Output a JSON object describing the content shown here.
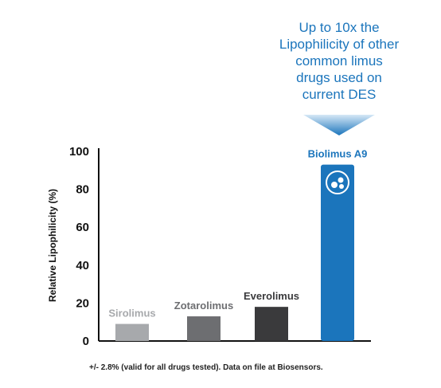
{
  "callout": {
    "lines": [
      "Up to 10x the",
      "Lipophilicity of other",
      "common limus",
      "drugs used on",
      "current DES"
    ]
  },
  "chart_data": {
    "type": "bar",
    "categories": [
      "Sirolimus",
      "Zotarolimus",
      "Everolimus",
      "Biolimus A9"
    ],
    "values": [
      9,
      13,
      18,
      93
    ],
    "ylabel": "Relative Lipophilicity (%)",
    "xlabel": "",
    "ylim": [
      0,
      100
    ],
    "yticks": [
      0,
      20,
      40,
      60,
      80,
      100
    ],
    "grid": false,
    "bar_colors": [
      "#a7a9ac",
      "#6d6e71",
      "#3a3a3c",
      "#1b75bc"
    ],
    "label_colors": [
      "#a7a9ac",
      "#6d6e71",
      "#3a3a3c",
      "#1b75bc"
    ],
    "highlight_icon": "molecule-icon"
  },
  "footnote": "+/- 2.8% (valid for all drugs tested). Data on file at Biosensors.",
  "colors": {
    "accent": "#1b75bc",
    "axis": "#111111"
  }
}
